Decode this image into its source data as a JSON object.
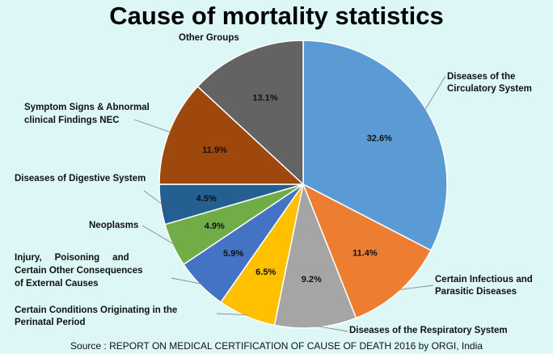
{
  "chart_data": {
    "type": "pie",
    "title": "Cause of mortality statistics",
    "source": "Source : REPORT ON MEDICAL CERTIFICATION OF CAUSE OF DEATH 2016 by ORGI, India",
    "slices": [
      {
        "label": [
          "Diseases of the",
          "Circulatory System"
        ],
        "value": 32.6,
        "display": "32.6%",
        "color": "#5b9bd5"
      },
      {
        "label": [
          "Certain Infectious and",
          "Parasitic Diseases"
        ],
        "value": 11.4,
        "display": "11.4%",
        "color": "#ed7d31"
      },
      {
        "label": [
          "Diseases of the Respiratory System"
        ],
        "value": 9.2,
        "display": "9.2%",
        "color": "#a5a5a5"
      },
      {
        "label": [
          "Certain Conditions Originating in the",
          "Perinatal Period"
        ],
        "value": 6.5,
        "display": "6.5%",
        "color": "#ffc000"
      },
      {
        "label": [
          "Injury,     Poisoning     and",
          "Certain Other Consequences",
          "of External Causes"
        ],
        "value": 5.9,
        "display": "5.9%",
        "color": "#4472c4"
      },
      {
        "label": [
          "Neoplasms"
        ],
        "value": 4.9,
        "display": "4.9%",
        "color": "#70ad47"
      },
      {
        "label": [
          "Diseases of Digestive System"
        ],
        "value": 4.5,
        "display": "4.5%",
        "color": "#255e91"
      },
      {
        "label": [
          "Symptom Signs & Abnormal",
          "clinical Findings NEC"
        ],
        "value": 11.9,
        "display": "11.9%",
        "color": "#9e480e"
      },
      {
        "label": [
          "Other Groups"
        ],
        "value": 13.1,
        "display": "13.1%",
        "color": "#636363"
      }
    ]
  }
}
